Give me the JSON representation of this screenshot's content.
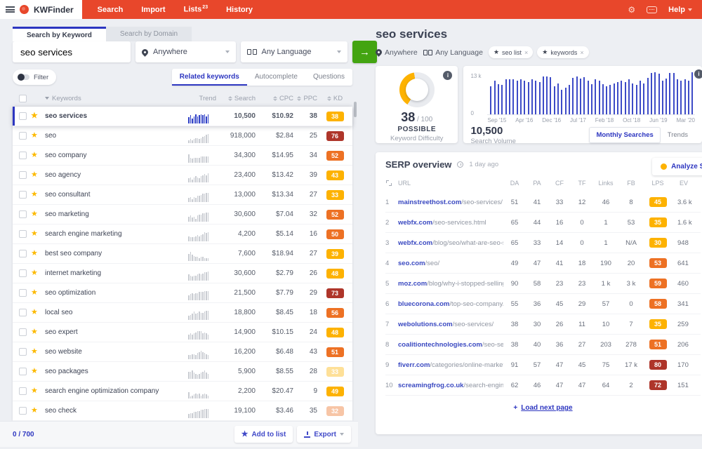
{
  "nav": {
    "brand": "KWFinder",
    "items": [
      {
        "label": "Search",
        "badge": ""
      },
      {
        "label": "Import",
        "badge": ""
      },
      {
        "label": "Lists",
        "badge": "23"
      },
      {
        "label": "History",
        "badge": ""
      }
    ],
    "help_label": "Help"
  },
  "search_panel": {
    "tabs": [
      {
        "label": "Search by Keyword",
        "active": true
      },
      {
        "label": "Search by Domain",
        "active": false
      }
    ],
    "keyword_input": "seo services",
    "location": "Anywhere",
    "language": "Any Language",
    "filter_label": "Filter",
    "result_tabs": [
      {
        "label": "Related keywords",
        "active": true
      },
      {
        "label": "Autocomplete",
        "active": false
      },
      {
        "label": "Questions",
        "active": false
      }
    ],
    "table": {
      "columns": [
        "Keywords",
        "Trend",
        "Search",
        "CPC",
        "PPC",
        "KD"
      ],
      "rows": [
        {
          "kw": "seo services",
          "search": "10,500",
          "cpc": "$10.92",
          "ppc": "38",
          "kd": "38",
          "level": "yellow",
          "selected": true,
          "faded": false,
          "spark": [
            6,
            8,
            5,
            7,
            9,
            7,
            8,
            9,
            8,
            9,
            7,
            9
          ]
        },
        {
          "kw": "seo",
          "search": "918,000",
          "cpc": "$2.84",
          "ppc": "25",
          "kd": "76",
          "level": "red",
          "selected": false,
          "faded": false,
          "spark": [
            3,
            4,
            3,
            4,
            5,
            5,
            4,
            5,
            6,
            7,
            8,
            9
          ]
        },
        {
          "kw": "seo company",
          "search": "34,300",
          "cpc": "$14.95",
          "ppc": "34",
          "kd": "52",
          "level": "orange",
          "selected": false,
          "faded": false,
          "spark": [
            8,
            5,
            4,
            5,
            5,
            5,
            5,
            6,
            6,
            6,
            6,
            6
          ]
        },
        {
          "kw": "seo agency",
          "search": "23,400",
          "cpc": "$13.42",
          "ppc": "39",
          "kd": "43",
          "level": "yellow",
          "selected": false,
          "faded": false,
          "spark": [
            4,
            5,
            3,
            5,
            6,
            5,
            4,
            6,
            7,
            8,
            7,
            9
          ]
        },
        {
          "kw": "seo consultant",
          "search": "13,000",
          "cpc": "$13.34",
          "ppc": "27",
          "kd": "33",
          "level": "yellow",
          "selected": false,
          "faded": false,
          "spark": [
            4,
            5,
            3,
            5,
            4,
            6,
            6,
            7,
            8,
            8,
            9,
            9
          ]
        },
        {
          "kw": "seo marketing",
          "search": "30,600",
          "cpc": "$7.04",
          "ppc": "32",
          "kd": "52",
          "level": "orange",
          "selected": false,
          "faded": false,
          "spark": [
            5,
            6,
            4,
            5,
            3,
            6,
            7,
            7,
            8,
            8,
            9,
            9
          ]
        },
        {
          "kw": "search engine marketing",
          "search": "4,200",
          "cpc": "$5.14",
          "ppc": "16",
          "kd": "50",
          "level": "orange",
          "selected": false,
          "faded": false,
          "spark": [
            5,
            4,
            4,
            4,
            5,
            6,
            5,
            6,
            7,
            9,
            8,
            9
          ]
        },
        {
          "kw": "best seo company",
          "search": "7,600",
          "cpc": "$18.94",
          "ppc": "27",
          "kd": "39",
          "level": "yellow",
          "selected": false,
          "faded": false,
          "spark": [
            7,
            9,
            6,
            5,
            4,
            4,
            3,
            4,
            4,
            3,
            3,
            3
          ]
        },
        {
          "kw": "internet marketing",
          "search": "30,600",
          "cpc": "$2.79",
          "ppc": "26",
          "kd": "48",
          "level": "yellow",
          "selected": false,
          "faded": false,
          "spark": [
            6,
            5,
            4,
            5,
            5,
            6,
            7,
            6,
            7,
            8,
            8,
            9
          ]
        },
        {
          "kw": "seo optimization",
          "search": "21,500",
          "cpc": "$7.79",
          "ppc": "29",
          "kd": "73",
          "level": "red",
          "selected": false,
          "faded": false,
          "spark": [
            5,
            6,
            7,
            6,
            7,
            7,
            8,
            8,
            8,
            9,
            9,
            9
          ]
        },
        {
          "kw": "local seo",
          "search": "18,800",
          "cpc": "$8.45",
          "ppc": "18",
          "kd": "56",
          "level": "orange",
          "selected": false,
          "faded": false,
          "spark": [
            4,
            5,
            6,
            8,
            6,
            7,
            8,
            7,
            7,
            8,
            9,
            9
          ]
        },
        {
          "kw": "seo expert",
          "search": "14,900",
          "cpc": "$10.15",
          "ppc": "24",
          "kd": "48",
          "level": "yellow",
          "selected": false,
          "faded": false,
          "spark": [
            5,
            6,
            5,
            6,
            7,
            8,
            8,
            8,
            6,
            7,
            6,
            5
          ]
        },
        {
          "kw": "seo website",
          "search": "16,200",
          "cpc": "$6.48",
          "ppc": "43",
          "kd": "51",
          "level": "orange",
          "selected": false,
          "faded": false,
          "spark": [
            4,
            4,
            5,
            5,
            4,
            6,
            7,
            8,
            7,
            6,
            5,
            4
          ]
        },
        {
          "kw": "seo packages",
          "search": "5,900",
          "cpc": "$8.55",
          "ppc": "28",
          "kd": "33",
          "level": "yellow",
          "selected": false,
          "faded": true,
          "spark": [
            7,
            7,
            8,
            6,
            5,
            4,
            5,
            6,
            7,
            8,
            6,
            5
          ]
        },
        {
          "kw": "search engine optimization company",
          "search": "2,200",
          "cpc": "$20.47",
          "ppc": "9",
          "kd": "49",
          "level": "yellow",
          "selected": false,
          "faded": false,
          "spark": [
            6,
            2,
            3,
            4,
            5,
            4,
            5,
            3,
            4,
            5,
            4,
            3
          ]
        },
        {
          "kw": "seo check",
          "search": "19,100",
          "cpc": "$3.46",
          "ppc": "35",
          "kd": "32",
          "level": "orange",
          "selected": false,
          "faded": true,
          "spark": [
            4,
            5,
            5,
            6,
            6,
            7,
            7,
            8,
            8,
            9,
            9,
            9
          ]
        }
      ]
    },
    "footer": {
      "selection": "0 / 700",
      "add_to_list": "Add to list",
      "export": "Export"
    }
  },
  "detail_panel": {
    "title": "seo services",
    "location": "Anywhere",
    "language": "Any Language",
    "tags": [
      "seo list",
      "keywords"
    ],
    "difficulty": {
      "score": "38",
      "max": "/ 100",
      "label": "POSSIBLE",
      "sub": "Keyword Difficulty"
    },
    "volume": {
      "value": "10,500",
      "label": "Search Volume",
      "buttons": [
        {
          "label": "Monthly Searches",
          "active": true
        },
        {
          "label": "Trends",
          "active": false
        }
      ]
    },
    "serp": {
      "title": "SERP overview",
      "updated": "1 day ago",
      "analyze_label": "Analyze SE",
      "columns": [
        "URL",
        "DA",
        "PA",
        "CF",
        "TF",
        "Links",
        "FB",
        "LPS",
        "EV"
      ],
      "rows": [
        {
          "n": "1",
          "domain": "mainstreethost.com",
          "path": "/seo-services/",
          "da": "51",
          "pa": "41",
          "cf": "33",
          "tf": "12",
          "links": "46",
          "fb": "8",
          "lps": "45",
          "lps_level": "yellow",
          "ev": "3.6 k"
        },
        {
          "n": "2",
          "domain": "webfx.com",
          "path": "/seo-services.html",
          "da": "65",
          "pa": "44",
          "cf": "16",
          "tf": "0",
          "links": "1",
          "fb": "53",
          "lps": "35",
          "lps_level": "yellow",
          "ev": "1.6 k"
        },
        {
          "n": "3",
          "domain": "webfx.com",
          "path": "/blog/seo/what-are-seo-s…",
          "da": "65",
          "pa": "33",
          "cf": "14",
          "tf": "0",
          "links": "1",
          "fb": "N/A",
          "lps": "30",
          "lps_level": "yellow",
          "ev": "948"
        },
        {
          "n": "4",
          "domain": "seo.com",
          "path": "/seo/",
          "da": "49",
          "pa": "47",
          "cf": "41",
          "tf": "18",
          "links": "190",
          "fb": "20",
          "lps": "53",
          "lps_level": "orange",
          "ev": "641"
        },
        {
          "n": "5",
          "domain": "moz.com",
          "path": "/blog/why-i-stopped-selling-…",
          "da": "90",
          "pa": "58",
          "cf": "23",
          "tf": "23",
          "links": "1 k",
          "fb": "3 k",
          "lps": "59",
          "lps_level": "orange",
          "ev": "460"
        },
        {
          "n": "6",
          "domain": "bluecorona.com",
          "path": "/top-seo-company/",
          "da": "55",
          "pa": "36",
          "cf": "45",
          "tf": "29",
          "links": "57",
          "fb": "0",
          "lps": "58",
          "lps_level": "orange",
          "ev": "341"
        },
        {
          "n": "7",
          "domain": "webolutions.com",
          "path": "/seo-services/",
          "da": "38",
          "pa": "30",
          "cf": "26",
          "tf": "11",
          "links": "10",
          "fb": "7",
          "lps": "35",
          "lps_level": "yellow",
          "ev": "259"
        },
        {
          "n": "8",
          "domain": "coalitiontechnologies.com",
          "path": "/seo-searc…",
          "da": "38",
          "pa": "40",
          "cf": "36",
          "tf": "27",
          "links": "203",
          "fb": "278",
          "lps": "51",
          "lps_level": "orange",
          "ev": "206"
        },
        {
          "n": "9",
          "domain": "fiverr.com",
          "path": "/categories/online-marketi…",
          "da": "91",
          "pa": "57",
          "cf": "47",
          "tf": "45",
          "links": "75",
          "fb": "17 k",
          "lps": "80",
          "lps_level": "red",
          "ev": "170"
        },
        {
          "n": "10",
          "domain": "screamingfrog.co.uk",
          "path": "/search-engine-…",
          "da": "62",
          "pa": "46",
          "cf": "47",
          "tf": "47",
          "links": "64",
          "fb": "2",
          "lps": "72",
          "lps_level": "red",
          "ev": "151"
        }
      ],
      "load_next": "Load next page"
    }
  },
  "chart_data": {
    "type": "bar",
    "title": "Monthly Searches",
    "ylabel": "Search Volume",
    "ylim": [
      0,
      13000
    ],
    "yticks": [
      "13 k",
      "0"
    ],
    "xticks": [
      "Sep '15",
      "Apr '16",
      "Dec '16",
      "Jul '17",
      "Feb '18",
      "Oct '18",
      "Jun '19",
      "Mar '20"
    ],
    "values": [
      8600,
      10400,
      9400,
      9000,
      10800,
      10800,
      10800,
      10400,
      10800,
      10400,
      10000,
      10800,
      10400,
      10000,
      11600,
      11800,
      11400,
      8600,
      9600,
      7600,
      8200,
      9000,
      11200,
      11600,
      11000,
      11400,
      10400,
      9400,
      10800,
      10400,
      9400,
      8600,
      9000,
      9600,
      10000,
      10400,
      10000,
      10800,
      9600,
      9000,
      10400,
      9600,
      11200,
      12800,
      13000,
      12600,
      10400,
      11000,
      12800,
      12800,
      10800,
      10400,
      10800,
      10400,
      13000
    ],
    "average_volume": "10,500"
  },
  "colors": {
    "accent_blue": "#2d36c0",
    "nav_red": "#e8472b",
    "kd_yellow": "#fdb201",
    "kd_orange": "#ed7124",
    "kd_red": "#ae352a",
    "bar_blue": "#3d4bc7",
    "star_yellow": "#fcb900",
    "go_green": "#43a411"
  }
}
